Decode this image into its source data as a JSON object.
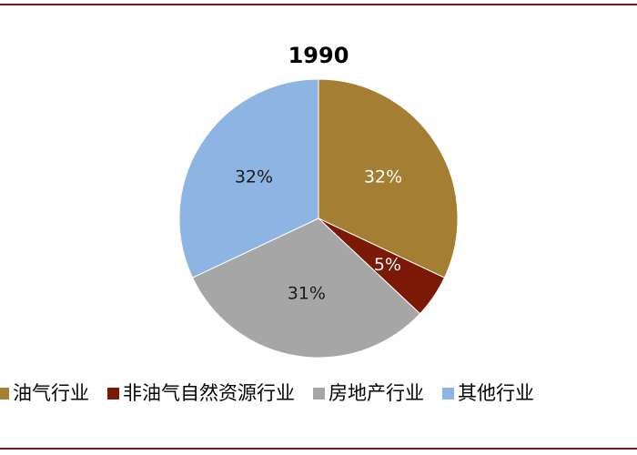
{
  "chart_data": {
    "type": "pie",
    "title": "1990",
    "categories": [
      "油气行业",
      "非油气自然资源行业",
      "房地产行业",
      "其他行业"
    ],
    "values": [
      32,
      5,
      31,
      32
    ],
    "value_labels": [
      "32%",
      "5%",
      "31%",
      "32%"
    ],
    "colors": [
      "#a47e32",
      "#7a1a06",
      "#a6a6a6",
      "#8eb4e3"
    ],
    "legend": "bottom"
  }
}
